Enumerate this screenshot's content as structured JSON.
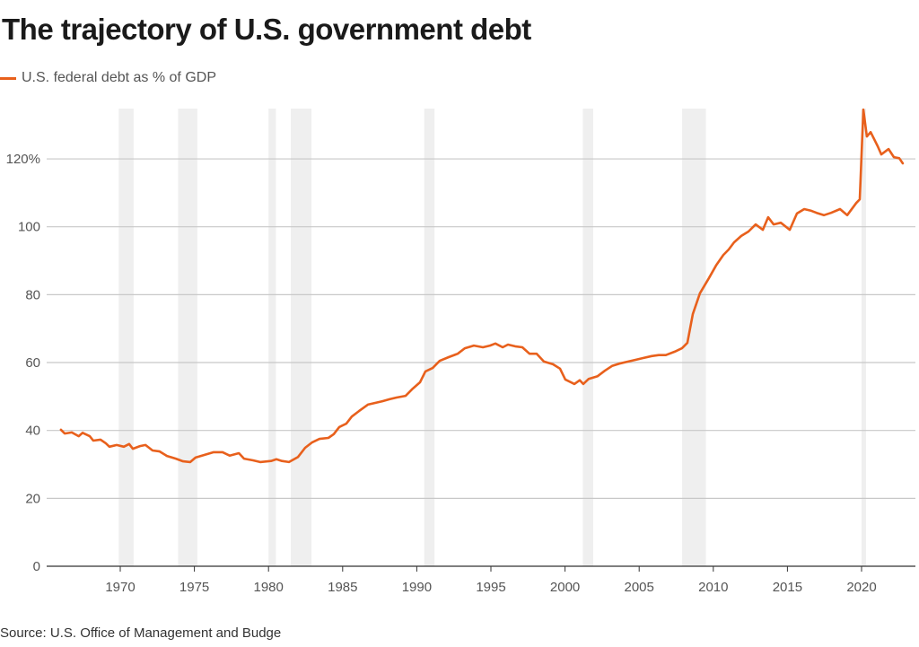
{
  "chart_data": {
    "type": "line",
    "title": "The trajectory of U.S. government debt",
    "source": "Source: U.S. Office of Management and Budge",
    "xlabel": "",
    "ylabel": "",
    "xlim": [
      1965,
      2023.8
    ],
    "ylim": [
      0,
      135
    ],
    "grid": true,
    "legend_position": "top-left",
    "y_ticks": [
      {
        "v": 0,
        "label": "0"
      },
      {
        "v": 20,
        "label": "20"
      },
      {
        "v": 40,
        "label": "40"
      },
      {
        "v": 60,
        "label": "60"
      },
      {
        "v": 80,
        "label": "80"
      },
      {
        "v": 100,
        "label": "100"
      },
      {
        "v": 120,
        "label": "120%"
      }
    ],
    "x_ticks": [
      {
        "v": 1970,
        "label": "1970"
      },
      {
        "v": 1975,
        "label": "1975"
      },
      {
        "v": 1980,
        "label": "1980"
      },
      {
        "v": 1985,
        "label": "1985"
      },
      {
        "v": 1990,
        "label": "1990"
      },
      {
        "v": 1995,
        "label": "1995"
      },
      {
        "v": 2000,
        "label": "2000"
      },
      {
        "v": 2005,
        "label": "2005"
      },
      {
        "v": 2010,
        "label": "2010"
      },
      {
        "v": 2015,
        "label": "2015"
      },
      {
        "v": 2020,
        "label": "2020"
      }
    ],
    "recessions": [
      [
        1969.9,
        1970.9
      ],
      [
        1973.9,
        1975.2
      ],
      [
        1980.0,
        1980.5
      ],
      [
        1981.5,
        1982.9
      ],
      [
        1990.5,
        1991.2
      ],
      [
        2001.2,
        2001.9
      ],
      [
        2007.9,
        2009.5
      ],
      [
        2020.0,
        2020.3
      ]
    ],
    "series": [
      {
        "name": "U.S. federal debt as % of GDP",
        "color": "#e8601c",
        "points": [
          [
            1966.0,
            40.2
          ],
          [
            1966.25,
            39.1
          ],
          [
            1966.73,
            39.4
          ],
          [
            1967.2,
            38.3
          ],
          [
            1967.46,
            39.3
          ],
          [
            1967.94,
            38.3
          ],
          [
            1968.18,
            37.0
          ],
          [
            1968.67,
            37.3
          ],
          [
            1969.03,
            36.2
          ],
          [
            1969.27,
            35.2
          ],
          [
            1969.76,
            35.7
          ],
          [
            1970.24,
            35.2
          ],
          [
            1970.6,
            36.0
          ],
          [
            1970.85,
            34.6
          ],
          [
            1971.33,
            35.4
          ],
          [
            1971.7,
            35.7
          ],
          [
            1972.18,
            34.1
          ],
          [
            1972.66,
            33.8
          ],
          [
            1973.15,
            32.5
          ],
          [
            1973.75,
            31.7
          ],
          [
            1974.24,
            30.9
          ],
          [
            1974.72,
            30.7
          ],
          [
            1975.08,
            32.0
          ],
          [
            1975.69,
            32.8
          ],
          [
            1976.3,
            33.6
          ],
          [
            1976.9,
            33.6
          ],
          [
            1977.38,
            32.6
          ],
          [
            1978.0,
            33.3
          ],
          [
            1978.35,
            31.7
          ],
          [
            1978.96,
            31.2
          ],
          [
            1979.44,
            30.7
          ],
          [
            1980.17,
            31.0
          ],
          [
            1980.53,
            31.5
          ],
          [
            1980.9,
            31.0
          ],
          [
            1981.38,
            30.7
          ],
          [
            1981.99,
            32.2
          ],
          [
            1982.47,
            34.9
          ],
          [
            1982.95,
            36.5
          ],
          [
            1983.44,
            37.5
          ],
          [
            1984.04,
            37.8
          ],
          [
            1984.4,
            38.9
          ],
          [
            1984.77,
            41.0
          ],
          [
            1985.25,
            42.0
          ],
          [
            1985.62,
            44.1
          ],
          [
            1986.1,
            45.7
          ],
          [
            1986.7,
            47.6
          ],
          [
            1987.19,
            48.1
          ],
          [
            1987.68,
            48.6
          ],
          [
            1988.16,
            49.2
          ],
          [
            1988.64,
            49.7
          ],
          [
            1989.25,
            50.2
          ],
          [
            1989.73,
            52.3
          ],
          [
            1990.22,
            54.2
          ],
          [
            1990.58,
            57.4
          ],
          [
            1991.07,
            58.4
          ],
          [
            1991.55,
            60.5
          ],
          [
            1992.15,
            61.6
          ],
          [
            1992.76,
            62.6
          ],
          [
            1993.24,
            64.2
          ],
          [
            1993.85,
            65.0
          ],
          [
            1994.46,
            64.5
          ],
          [
            1994.94,
            65.0
          ],
          [
            1995.3,
            65.6
          ],
          [
            1995.79,
            64.5
          ],
          [
            1996.15,
            65.3
          ],
          [
            1996.63,
            64.8
          ],
          [
            1997.12,
            64.5
          ],
          [
            1997.6,
            62.6
          ],
          [
            1998.09,
            62.6
          ],
          [
            1998.57,
            60.3
          ],
          [
            1999.18,
            59.5
          ],
          [
            1999.66,
            58.2
          ],
          [
            2000.02,
            55.0
          ],
          [
            2000.63,
            53.7
          ],
          [
            2000.99,
            54.8
          ],
          [
            2001.23,
            53.7
          ],
          [
            2001.6,
            55.2
          ],
          [
            2002.2,
            56.0
          ],
          [
            2002.69,
            57.6
          ],
          [
            2003.17,
            59.0
          ],
          [
            2003.66,
            59.7
          ],
          [
            2004.26,
            60.3
          ],
          [
            2004.75,
            60.8
          ],
          [
            2005.23,
            61.3
          ],
          [
            2005.84,
            61.9
          ],
          [
            2006.32,
            62.2
          ],
          [
            2006.8,
            62.2
          ],
          [
            2007.4,
            63.2
          ],
          [
            2007.89,
            64.2
          ],
          [
            2008.25,
            65.8
          ],
          [
            2008.62,
            74.3
          ],
          [
            2009.1,
            80.4
          ],
          [
            2009.71,
            84.9
          ],
          [
            2010.19,
            88.6
          ],
          [
            2010.68,
            91.7
          ],
          [
            2011.04,
            93.3
          ],
          [
            2011.4,
            95.4
          ],
          [
            2011.89,
            97.3
          ],
          [
            2012.37,
            98.6
          ],
          [
            2012.86,
            100.7
          ],
          [
            2013.34,
            99.1
          ],
          [
            2013.7,
            102.8
          ],
          [
            2014.07,
            100.7
          ],
          [
            2014.55,
            101.2
          ],
          [
            2015.16,
            99.1
          ],
          [
            2015.64,
            103.9
          ],
          [
            2016.13,
            105.2
          ],
          [
            2016.61,
            104.7
          ],
          [
            2016.97,
            104.1
          ],
          [
            2017.46,
            103.4
          ],
          [
            2017.94,
            104.1
          ],
          [
            2018.55,
            105.2
          ],
          [
            2019.03,
            103.4
          ],
          [
            2019.64,
            107.0
          ],
          [
            2019.88,
            108.1
          ],
          [
            2020.12,
            134.5
          ],
          [
            2020.36,
            126.6
          ],
          [
            2020.61,
            127.9
          ],
          [
            2021.09,
            123.7
          ],
          [
            2021.33,
            121.3
          ],
          [
            2021.82,
            122.9
          ],
          [
            2022.18,
            120.5
          ],
          [
            2022.54,
            120.2
          ],
          [
            2022.78,
            118.7
          ]
        ]
      }
    ]
  }
}
